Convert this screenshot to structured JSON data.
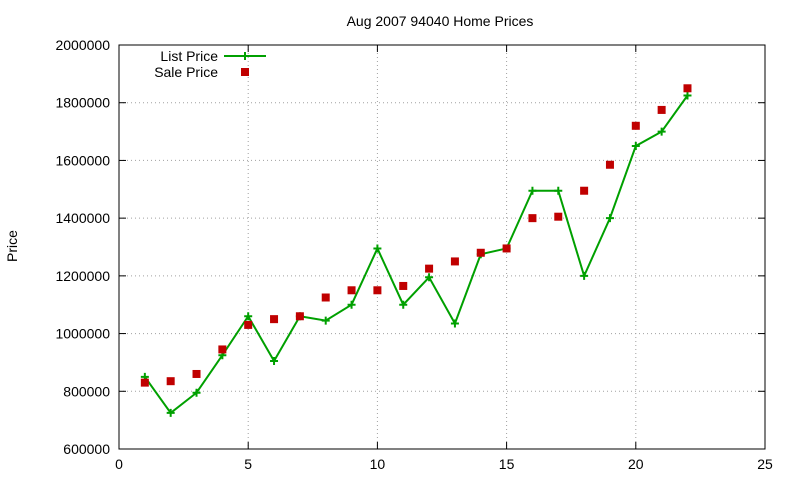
{
  "chart_data": {
    "type": "line",
    "title": "Aug 2007 94040 Home Prices",
    "xlabel": "",
    "ylabel": "Price",
    "xlim": [
      0,
      25
    ],
    "ylim": [
      600000,
      2000000
    ],
    "xticks": [
      "0",
      "5",
      "10",
      "15",
      "20",
      "25"
    ],
    "yticks": [
      "600000",
      "800000",
      "1000000",
      "1200000",
      "1400000",
      "1600000",
      "1800000",
      "2000000"
    ],
    "grid": true,
    "legend_position": "top-left",
    "series": [
      {
        "name": "List Price",
        "style": "line-plus",
        "color": "#00a000",
        "x": [
          1,
          2,
          3,
          4,
          5,
          6,
          7,
          8,
          9,
          10,
          11,
          12,
          13,
          14,
          15,
          16,
          17,
          18,
          19,
          20,
          21,
          22
        ],
        "y": [
          850000,
          725000,
          795000,
          925000,
          1060000,
          905000,
          1060000,
          1045000,
          1100000,
          1295000,
          1100000,
          1195000,
          1035000,
          1275000,
          1295000,
          1495000,
          1495000,
          1200000,
          1400000,
          1650000,
          1700000,
          1825000
        ]
      },
      {
        "name": "Sale Price",
        "style": "square",
        "color": "#c00000",
        "x": [
          1,
          2,
          3,
          4,
          5,
          6,
          7,
          8,
          9,
          10,
          11,
          12,
          13,
          14,
          15,
          16,
          17,
          18,
          19,
          20,
          21,
          22
        ],
        "y": [
          830000,
          835000,
          860000,
          945000,
          1030000,
          1050000,
          1060000,
          1125000,
          1150000,
          1150000,
          1165000,
          1225000,
          1250000,
          1280000,
          1295000,
          1400000,
          1405000,
          1495000,
          1585000,
          1720000,
          1775000,
          1850000
        ]
      }
    ]
  }
}
